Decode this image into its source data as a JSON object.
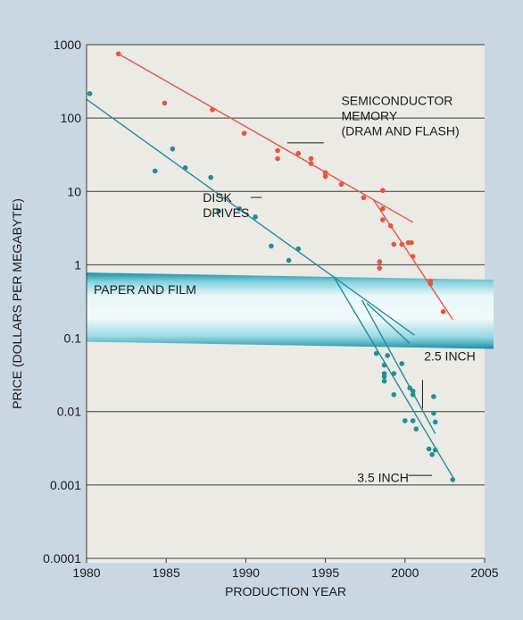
{
  "chart_data": {
    "type": "scatter",
    "title": "",
    "xlabel": "PRODUCTION YEAR",
    "ylabel": "PRICE (DOLLARS PER MEGABYTE)",
    "xlim": [
      1980,
      2005
    ],
    "ylim": [
      0.0001,
      1000
    ],
    "yscale": "log",
    "x_ticks": [
      "1980",
      "1985",
      "1990",
      "1995",
      "2000",
      "2005"
    ],
    "y_ticks": [
      "0.0001",
      "0.001",
      "0.01",
      "0.1",
      "1",
      "10",
      "100",
      "1000"
    ],
    "grid": "horizontal",
    "colors": {
      "semiconductor": "#e8553a",
      "disk": "#1f8f9c",
      "band": "#4bb6c8",
      "plot_bg": "#ebeae5",
      "frame": "#c9d7e3"
    },
    "band": {
      "label": "PAPER AND FILM",
      "y_range": [
        0.08,
        0.7
      ]
    },
    "series": [
      {
        "name": "SEMICONDUCTOR MEMORY (DRAM AND FLASH)",
        "color": "#e8553a",
        "points": [
          [
            1982,
            750
          ],
          [
            1984.9,
            160
          ],
          [
            1987.9,
            130
          ],
          [
            1989.9,
            62
          ],
          [
            1992,
            36
          ],
          [
            1992,
            28
          ],
          [
            1993.3,
            33
          ],
          [
            1994.1,
            28
          ],
          [
            1994.1,
            24
          ],
          [
            1995,
            18
          ],
          [
            1995,
            16
          ],
          [
            1996,
            12.5
          ],
          [
            1997.4,
            8.2
          ],
          [
            1998.6,
            10.3
          ],
          [
            1998.6,
            5.8
          ],
          [
            1998.6,
            4.1
          ],
          [
            1999.1,
            3.4
          ],
          [
            1999.3,
            1.9
          ],
          [
            1999.8,
            1.9
          ],
          [
            2000.2,
            2.0
          ],
          [
            2000.4,
            2.0
          ],
          [
            2000.5,
            1.3
          ],
          [
            1998.4,
            1.1
          ],
          [
            1998.4,
            0.9
          ],
          [
            2001.6,
            0.6
          ],
          [
            2001.6,
            0.55
          ],
          [
            2002.4,
            0.23
          ]
        ],
        "trend_lines": [
          [
            [
              1982,
              750
            ],
            [
              2000.5,
              3.8
            ]
          ],
          [
            [
              1998,
              7.8
            ],
            [
              2003,
              0.18
            ]
          ]
        ]
      },
      {
        "name": "DISK DRIVES",
        "color": "#1f8f9c",
        "points": [
          [
            1980.2,
            215
          ],
          [
            1984.3,
            19
          ],
          [
            1985.4,
            38
          ],
          [
            1986.2,
            21
          ],
          [
            1987.8,
            15.5
          ],
          [
            1988.3,
            5.4
          ],
          [
            1989.6,
            5.8
          ],
          [
            1990.6,
            4.5
          ],
          [
            1991.6,
            1.8
          ],
          [
            1992.7,
            1.15
          ],
          [
            1993.3,
            1.65
          ],
          [
            1998.2,
            0.062
          ],
          [
            1998.9,
            0.058
          ],
          [
            1998.7,
            0.043
          ],
          [
            1998.7,
            0.033
          ],
          [
            1998.7,
            0.03
          ],
          [
            1998.7,
            0.026
          ],
          [
            1999.3,
            0.033
          ],
          [
            1999.8,
            0.045
          ],
          [
            1999.3,
            0.017
          ],
          [
            2000.3,
            0.021
          ],
          [
            2000.5,
            0.019
          ],
          [
            2000.5,
            0.017
          ],
          [
            2000,
            0.0075
          ],
          [
            2000.5,
            0.0075
          ],
          [
            2000.7,
            0.0058
          ],
          [
            2001.8,
            0.016
          ],
          [
            2001.8,
            0.0095
          ],
          [
            2001.9,
            0.0072
          ],
          [
            2001.5,
            0.0031
          ],
          [
            2001.7,
            0.0026
          ],
          [
            2001.9,
            0.003
          ],
          [
            2003,
            0.00118
          ]
        ],
        "trend_lines": [
          [
            [
              1980,
              180
            ],
            [
              2000.6,
              0.11
            ]
          ],
          [
            [
              1995.5,
              0.7
            ],
            [
              2003.1,
              0.00118
            ]
          ],
          [
            [
              1997.3,
              0.33
            ],
            [
              2001.9,
              0.005
            ]
          ],
          [
            [
              1997.6,
              0.3
            ],
            [
              2000.3,
              0.085
            ]
          ]
        ]
      }
    ],
    "annotations": [
      {
        "lines": [
          "SEMICONDUCTOR",
          "MEMORY",
          "(DRAM AND FLASH)"
        ],
        "leader_from": [
          1992.6,
          46
        ],
        "leader_to": [
          1994.9,
          46
        ],
        "text_at": [
          1996,
          150
        ]
      },
      {
        "lines": [
          "DISK",
          "DRIVES"
        ],
        "leader_from": [
          1990.5,
          6.5
        ],
        "leader_to": [
          1990.5,
          6.5
        ],
        "text_at": [
          1987.3,
          7.2
        ]
      },
      {
        "lines": [
          "2.5 INCH"
        ],
        "leader_from": [
          2001.1,
          0.011
        ],
        "leader_to": [
          2001.1,
          0.027
        ],
        "text_at": [
          2001.2,
          0.05
        ]
      },
      {
        "lines": [
          "3.5 INCH"
        ],
        "leader_from": [
          2000.2,
          0.00135
        ],
        "leader_to": [
          2001.7,
          0.00135
        ],
        "text_at": [
          1997,
          0.0011
        ]
      }
    ]
  }
}
